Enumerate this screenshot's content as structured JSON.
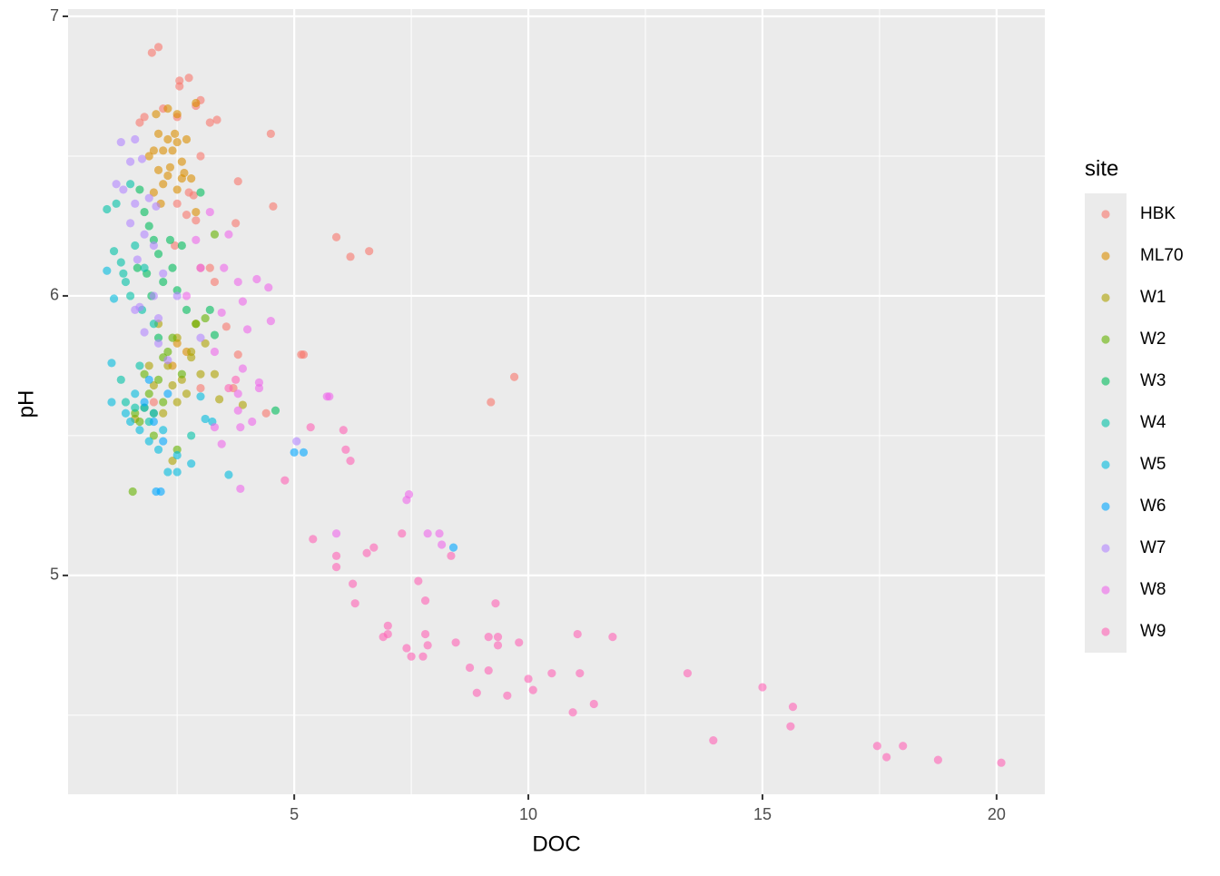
{
  "chart_data": {
    "type": "scatter",
    "x_label": "DOC",
    "y_label": "pH",
    "legend_title": "site",
    "legend": "right",
    "grid": true,
    "xlim": [
      0.17,
      21.03
    ],
    "ylim": [
      4.217,
      7.026
    ],
    "xticks": [
      5,
      10,
      15,
      20
    ],
    "yticks": [
      5,
      6,
      7
    ],
    "xminor": [
      2.5,
      7.5,
      12.5,
      17.5
    ],
    "yminor": [
      4.5,
      5.5,
      6.5
    ],
    "series": [
      {
        "name": "HBK",
        "color": "#F8766D",
        "x": [
          1.96,
          2.1,
          2.55,
          2.75,
          2.55,
          3.0,
          2.9,
          1.8,
          1.7,
          3.35,
          3.2,
          4.5,
          2.5,
          2.2,
          3.0,
          2.75,
          2.85,
          3.8,
          2.5,
          4.55,
          2.9,
          3.75,
          2.7,
          5.9,
          6.2,
          6.6,
          3.0,
          3.3,
          3.2,
          2.45,
          3.55,
          5.2,
          5.15,
          9.7,
          9.2,
          4.4,
          3.7,
          3.8,
          3.0,
          2.0
        ],
        "values": [
          6.87,
          6.89,
          6.77,
          6.78,
          6.75,
          6.7,
          6.68,
          6.64,
          6.62,
          6.63,
          6.62,
          6.58,
          6.64,
          6.67,
          6.5,
          6.37,
          6.36,
          6.41,
          6.33,
          6.32,
          6.27,
          6.26,
          6.29,
          6.21,
          6.14,
          6.16,
          6.1,
          6.05,
          6.1,
          6.18,
          5.89,
          5.79,
          5.79,
          5.71,
          5.62,
          5.58,
          5.67,
          5.79,
          5.67,
          5.62
        ]
      },
      {
        "name": "ML70",
        "color": "#DB8E00",
        "x": [
          2.05,
          2.3,
          2.5,
          2.9,
          2.1,
          2.3,
          2.5,
          2.7,
          2.0,
          2.4,
          2.6,
          2.1,
          2.3,
          2.65,
          2.2,
          2.5,
          2.0,
          2.8,
          1.9,
          2.45,
          2.2,
          2.6,
          2.35,
          2.15,
          2.9,
          2.5,
          2.7,
          2.4
        ],
        "values": [
          6.65,
          6.67,
          6.65,
          6.69,
          6.58,
          6.56,
          6.55,
          6.56,
          6.52,
          6.52,
          6.48,
          6.45,
          6.43,
          6.44,
          6.4,
          6.38,
          6.37,
          6.42,
          6.5,
          6.58,
          6.52,
          6.42,
          6.46,
          6.33,
          6.3,
          5.83,
          5.8,
          5.75
        ]
      },
      {
        "name": "W1",
        "color": "#AEA200",
        "x": [
          2.1,
          2.5,
          2.8,
          3.0,
          2.3,
          2.6,
          3.3,
          2.0,
          1.9,
          2.4,
          3.9,
          2.7,
          2.9,
          3.1,
          2.2,
          2.4,
          2.5,
          2.8,
          1.6,
          3.4
        ],
        "values": [
          5.9,
          5.85,
          5.8,
          5.72,
          5.75,
          5.7,
          5.72,
          5.68,
          5.75,
          5.68,
          5.61,
          5.65,
          5.9,
          5.83,
          5.58,
          5.41,
          5.62,
          5.78,
          5.56,
          5.63
        ]
      },
      {
        "name": "W2",
        "color": "#64B200",
        "x": [
          1.55,
          1.8,
          2.0,
          1.7,
          2.2,
          2.4,
          2.6,
          3.3,
          2.3,
          2.0,
          1.9,
          3.1,
          2.9,
          2.1,
          2.5,
          1.8,
          2.2,
          1.6
        ],
        "values": [
          5.3,
          5.6,
          5.58,
          5.55,
          5.62,
          5.85,
          5.72,
          6.22,
          5.8,
          5.5,
          5.65,
          5.92,
          5.9,
          5.7,
          5.45,
          5.72,
          5.78,
          5.58
        ]
      },
      {
        "name": "W3",
        "color": "#00BD5C",
        "x": [
          1.7,
          1.8,
          1.9,
          2.0,
          2.1,
          1.65,
          2.2,
          1.95,
          2.4,
          2.6,
          3.0,
          3.2,
          2.7,
          2.1,
          4.6,
          2.35,
          1.85,
          2.5,
          3.3
        ],
        "values": [
          6.38,
          6.3,
          6.25,
          6.2,
          6.15,
          6.1,
          6.05,
          6.0,
          6.1,
          6.18,
          6.37,
          5.95,
          5.95,
          5.85,
          5.59,
          6.2,
          6.08,
          6.02,
          5.86
        ]
      },
      {
        "name": "W4",
        "color": "#00C1A7",
        "x": [
          1.0,
          1.2,
          1.15,
          1.3,
          1.4,
          1.6,
          1.5,
          1.8,
          2.0,
          1.7,
          1.3,
          1.4,
          1.6,
          1.9,
          2.8,
          1.5,
          1.35,
          1.75
        ],
        "values": [
          6.31,
          6.33,
          6.16,
          6.12,
          6.05,
          6.18,
          6.0,
          6.1,
          5.9,
          5.75,
          5.7,
          5.62,
          5.6,
          5.55,
          5.5,
          6.4,
          6.08,
          5.95
        ]
      },
      {
        "name": "W5",
        "color": "#00BADE",
        "x": [
          1.0,
          1.15,
          1.1,
          1.1,
          1.5,
          1.7,
          1.9,
          2.1,
          2.3,
          2.5,
          2.5,
          2.8,
          3.0,
          3.1,
          3.25,
          3.6,
          1.8,
          2.0,
          2.2,
          1.6,
          1.4
        ],
        "values": [
          6.09,
          5.99,
          5.76,
          5.62,
          5.55,
          5.52,
          5.48,
          5.45,
          5.37,
          5.37,
          5.43,
          5.4,
          5.64,
          5.56,
          5.55,
          5.36,
          5.6,
          5.58,
          5.52,
          5.65,
          5.58
        ]
      },
      {
        "name": "W6",
        "color": "#00A6FF",
        "x": [
          2.05,
          2.15,
          5.0,
          5.2,
          8.4,
          1.9,
          2.3,
          2.0,
          1.8,
          2.2
        ],
        "values": [
          5.3,
          5.3,
          5.44,
          5.44,
          5.1,
          5.7,
          5.65,
          5.55,
          5.62,
          5.48
        ]
      },
      {
        "name": "W7",
        "color": "#B385FF",
        "x": [
          1.3,
          1.6,
          1.5,
          1.75,
          1.2,
          1.35,
          1.6,
          1.9,
          2.05,
          1.5,
          1.8,
          2.0,
          1.65,
          2.2,
          2.0,
          1.7,
          2.1,
          1.8,
          2.1,
          2.3,
          5.05,
          2.5,
          3.0,
          1.6
        ],
        "values": [
          6.55,
          6.56,
          6.48,
          6.49,
          6.4,
          6.38,
          6.33,
          6.35,
          6.32,
          6.26,
          6.22,
          6.18,
          6.13,
          6.08,
          6.0,
          5.96,
          5.92,
          5.87,
          5.83,
          5.77,
          5.48,
          6.0,
          5.85,
          5.95
        ]
      },
      {
        "name": "W8",
        "color": "#EF67EB",
        "x": [
          3.2,
          3.6,
          3.5,
          3.8,
          4.2,
          4.45,
          3.9,
          3.45,
          4.5,
          4.0,
          3.3,
          3.9,
          4.25,
          4.25,
          3.8,
          5.75,
          5.7,
          3.8,
          3.3,
          3.85,
          4.1,
          3.45,
          3.85,
          7.4,
          7.45,
          5.9,
          7.85,
          8.1,
          8.15,
          2.9,
          2.7,
          3.0
        ],
        "values": [
          6.3,
          6.22,
          6.1,
          6.05,
          6.06,
          6.03,
          5.98,
          5.94,
          5.91,
          5.88,
          5.8,
          5.74,
          5.69,
          5.67,
          5.65,
          5.64,
          5.64,
          5.59,
          5.53,
          5.53,
          5.55,
          5.47,
          5.31,
          5.27,
          5.29,
          5.15,
          5.15,
          5.15,
          5.11,
          6.2,
          6.0,
          6.1
        ]
      },
      {
        "name": "W9",
        "color": "#FF63B6",
        "x": [
          5.35,
          6.05,
          6.1,
          6.2,
          4.8,
          5.4,
          5.9,
          5.9,
          6.55,
          6.7,
          7.3,
          8.35,
          7.65,
          6.25,
          7.8,
          6.3,
          9.3,
          6.9,
          7.0,
          7.0,
          7.8,
          7.4,
          7.5,
          7.75,
          7.85,
          8.45,
          9.15,
          9.35,
          9.35,
          9.8,
          11.05,
          11.8,
          8.75,
          9.15,
          10.0,
          10.5,
          11.1,
          13.4,
          8.9,
          9.55,
          10.1,
          11.4,
          10.95,
          15.0,
          15.65,
          15.6,
          13.95,
          17.45,
          18.0,
          17.65,
          18.75,
          20.1,
          3.6,
          3.75
        ],
        "values": [
          5.53,
          5.52,
          5.45,
          5.41,
          5.34,
          5.13,
          5.07,
          5.03,
          5.08,
          5.1,
          5.15,
          5.07,
          4.98,
          4.97,
          4.91,
          4.9,
          4.9,
          4.78,
          4.79,
          4.82,
          4.79,
          4.74,
          4.71,
          4.71,
          4.75,
          4.76,
          4.78,
          4.78,
          4.75,
          4.76,
          4.79,
          4.78,
          4.67,
          4.66,
          4.63,
          4.65,
          4.65,
          4.65,
          4.58,
          4.57,
          4.59,
          4.54,
          4.51,
          4.6,
          4.53,
          4.46,
          4.41,
          4.39,
          4.39,
          4.35,
          4.34,
          4.33,
          5.67,
          5.7
        ]
      }
    ]
  }
}
